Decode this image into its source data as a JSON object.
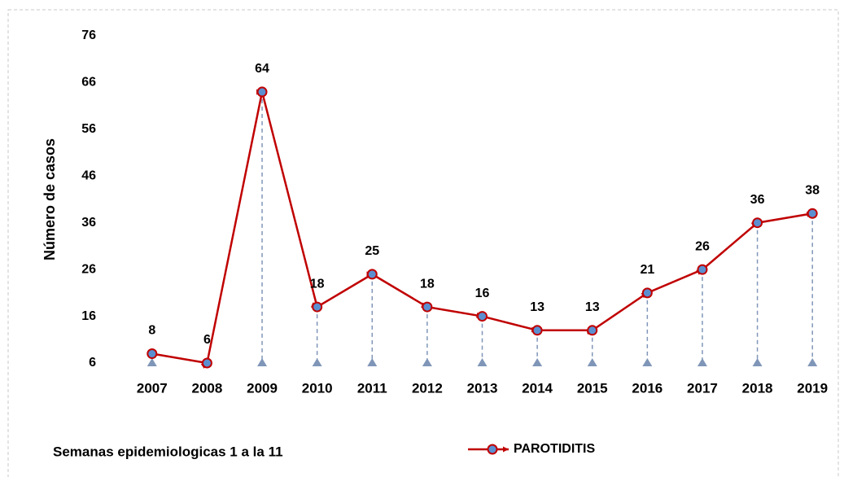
{
  "chart_data": {
    "type": "line",
    "y_axis_label": "Número de casos",
    "annotation": "Semanas epidemiologicas 1 a la 11",
    "categories": [
      "2007",
      "2008",
      "2009",
      "2010",
      "2011",
      "2012",
      "2013",
      "2014",
      "2015",
      "2016",
      "2017",
      "2018",
      "2019"
    ],
    "series": [
      {
        "name": "PAROTIDITIS",
        "color": "#c00000",
        "marker_color": "#5b8fd0",
        "values": [
          8,
          6,
          64,
          18,
          25,
          18,
          16,
          13,
          13,
          21,
          26,
          36,
          38
        ]
      }
    ],
    "ylim": [
      6,
      76
    ],
    "yticks": [
      6,
      16,
      26,
      36,
      46,
      56,
      66,
      76
    ],
    "grid": false,
    "drop_lines": true
  }
}
